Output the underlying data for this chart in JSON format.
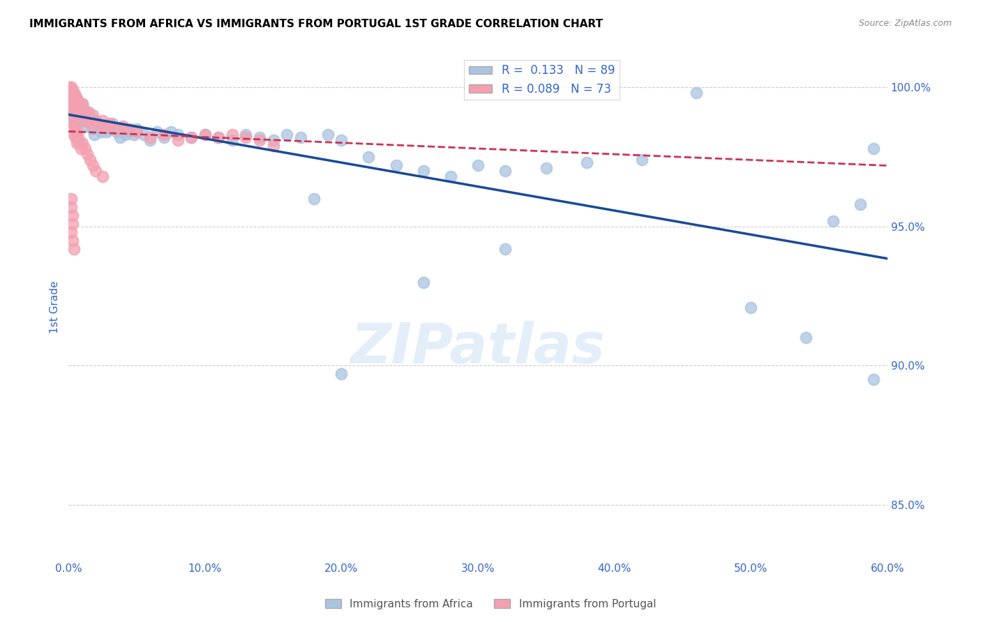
{
  "title": "IMMIGRANTS FROM AFRICA VS IMMIGRANTS FROM PORTUGAL 1ST GRADE CORRELATION CHART",
  "source": "Source: ZipAtlas.com",
  "ylabel": "1st Grade",
  "xlim": [
    0.0,
    0.6
  ],
  "ylim": [
    0.83,
    1.012
  ],
  "xtick_vals": [
    0.0,
    0.1,
    0.2,
    0.3,
    0.4,
    0.5,
    0.6
  ],
  "xtick_labels": [
    "0.0%",
    "10.0%",
    "20.0%",
    "30.0%",
    "40.0%",
    "50.0%",
    "60.0%"
  ],
  "ytick_vals": [
    0.85,
    0.9,
    0.95,
    1.0
  ],
  "ytick_labels": [
    "85.0%",
    "90.0%",
    "95.0%",
    "100.0%"
  ],
  "grid_color": "#cccccc",
  "africa_color": "#aac4e0",
  "portugal_color": "#f4a0b0",
  "africa_line_color": "#1a4a99",
  "portugal_line_color": "#cc3355",
  "africa_N": 89,
  "portugal_N": 73,
  "legend_africa_label": "R =  0.133   N = 89",
  "legend_portugal_label": "R = 0.089   N = 73",
  "bottom_legend_africa": "Immigrants from Africa",
  "bottom_legend_portugal": "Immigrants from Portugal",
  "watermark": "ZIPatlas",
  "africa_x": [
    0.001,
    0.001,
    0.002,
    0.002,
    0.002,
    0.002,
    0.003,
    0.003,
    0.003,
    0.003,
    0.003,
    0.004,
    0.004,
    0.004,
    0.004,
    0.005,
    0.005,
    0.005,
    0.005,
    0.006,
    0.006,
    0.006,
    0.007,
    0.007,
    0.008,
    0.008,
    0.009,
    0.01,
    0.01,
    0.011,
    0.012,
    0.013,
    0.014,
    0.015,
    0.016,
    0.017,
    0.018,
    0.019,
    0.02,
    0.022,
    0.024,
    0.026,
    0.028,
    0.03,
    0.032,
    0.035,
    0.038,
    0.04,
    0.042,
    0.045,
    0.048,
    0.05,
    0.055,
    0.06,
    0.065,
    0.07,
    0.075,
    0.08,
    0.09,
    0.1,
    0.11,
    0.12,
    0.13,
    0.14,
    0.15,
    0.16,
    0.17,
    0.18,
    0.19,
    0.2,
    0.22,
    0.24,
    0.26,
    0.28,
    0.3,
    0.32,
    0.35,
    0.38,
    0.42,
    0.46,
    0.5,
    0.54,
    0.56,
    0.58,
    0.59,
    0.32,
    0.26,
    0.2,
    0.59
  ],
  "africa_y": [
    0.999,
    0.997,
    0.998,
    0.996,
    0.994,
    0.99,
    0.998,
    0.996,
    0.994,
    0.992,
    0.988,
    0.997,
    0.994,
    0.991,
    0.987,
    0.996,
    0.993,
    0.99,
    0.985,
    0.995,
    0.991,
    0.987,
    0.993,
    0.989,
    0.992,
    0.988,
    0.99,
    0.994,
    0.988,
    0.992,
    0.99,
    0.988,
    0.986,
    0.991,
    0.989,
    0.987,
    0.985,
    0.983,
    0.988,
    0.986,
    0.984,
    0.986,
    0.984,
    0.985,
    0.987,
    0.984,
    0.982,
    0.985,
    0.983,
    0.984,
    0.983,
    0.985,
    0.983,
    0.981,
    0.984,
    0.982,
    0.984,
    0.983,
    0.982,
    0.983,
    0.982,
    0.981,
    0.983,
    0.982,
    0.981,
    0.983,
    0.982,
    0.96,
    0.983,
    0.981,
    0.975,
    0.972,
    0.97,
    0.968,
    0.972,
    0.97,
    0.971,
    0.973,
    0.974,
    0.998,
    0.921,
    0.91,
    0.952,
    0.958,
    0.978,
    0.942,
    0.93,
    0.897,
    0.895
  ],
  "portugal_x": [
    0.001,
    0.001,
    0.002,
    0.002,
    0.002,
    0.002,
    0.003,
    0.003,
    0.003,
    0.003,
    0.004,
    0.004,
    0.004,
    0.005,
    0.005,
    0.005,
    0.006,
    0.006,
    0.007,
    0.007,
    0.008,
    0.009,
    0.01,
    0.011,
    0.012,
    0.013,
    0.014,
    0.015,
    0.016,
    0.018,
    0.02,
    0.022,
    0.025,
    0.028,
    0.03,
    0.035,
    0.04,
    0.045,
    0.05,
    0.06,
    0.07,
    0.08,
    0.09,
    0.1,
    0.11,
    0.12,
    0.13,
    0.14,
    0.003,
    0.004,
    0.004,
    0.005,
    0.005,
    0.006,
    0.006,
    0.007,
    0.008,
    0.009,
    0.01,
    0.012,
    0.014,
    0.016,
    0.018,
    0.02,
    0.025,
    0.002,
    0.002,
    0.003,
    0.003,
    0.15,
    0.002,
    0.003,
    0.004
  ],
  "portugal_y": [
    1.0,
    0.998,
    1.0,
    0.998,
    0.996,
    0.993,
    0.999,
    0.997,
    0.995,
    0.991,
    0.998,
    0.995,
    0.992,
    0.997,
    0.994,
    0.99,
    0.996,
    0.992,
    0.995,
    0.991,
    0.993,
    0.991,
    0.994,
    0.992,
    0.99,
    0.988,
    0.991,
    0.989,
    0.987,
    0.99,
    0.988,
    0.986,
    0.988,
    0.986,
    0.987,
    0.985,
    0.986,
    0.985,
    0.984,
    0.982,
    0.983,
    0.981,
    0.982,
    0.983,
    0.982,
    0.983,
    0.982,
    0.981,
    0.989,
    0.986,
    0.983,
    0.986,
    0.982,
    0.984,
    0.98,
    0.982,
    0.98,
    0.978,
    0.98,
    0.978,
    0.976,
    0.974,
    0.972,
    0.97,
    0.968,
    0.96,
    0.957,
    0.954,
    0.951,
    0.979,
    0.948,
    0.945,
    0.942
  ]
}
